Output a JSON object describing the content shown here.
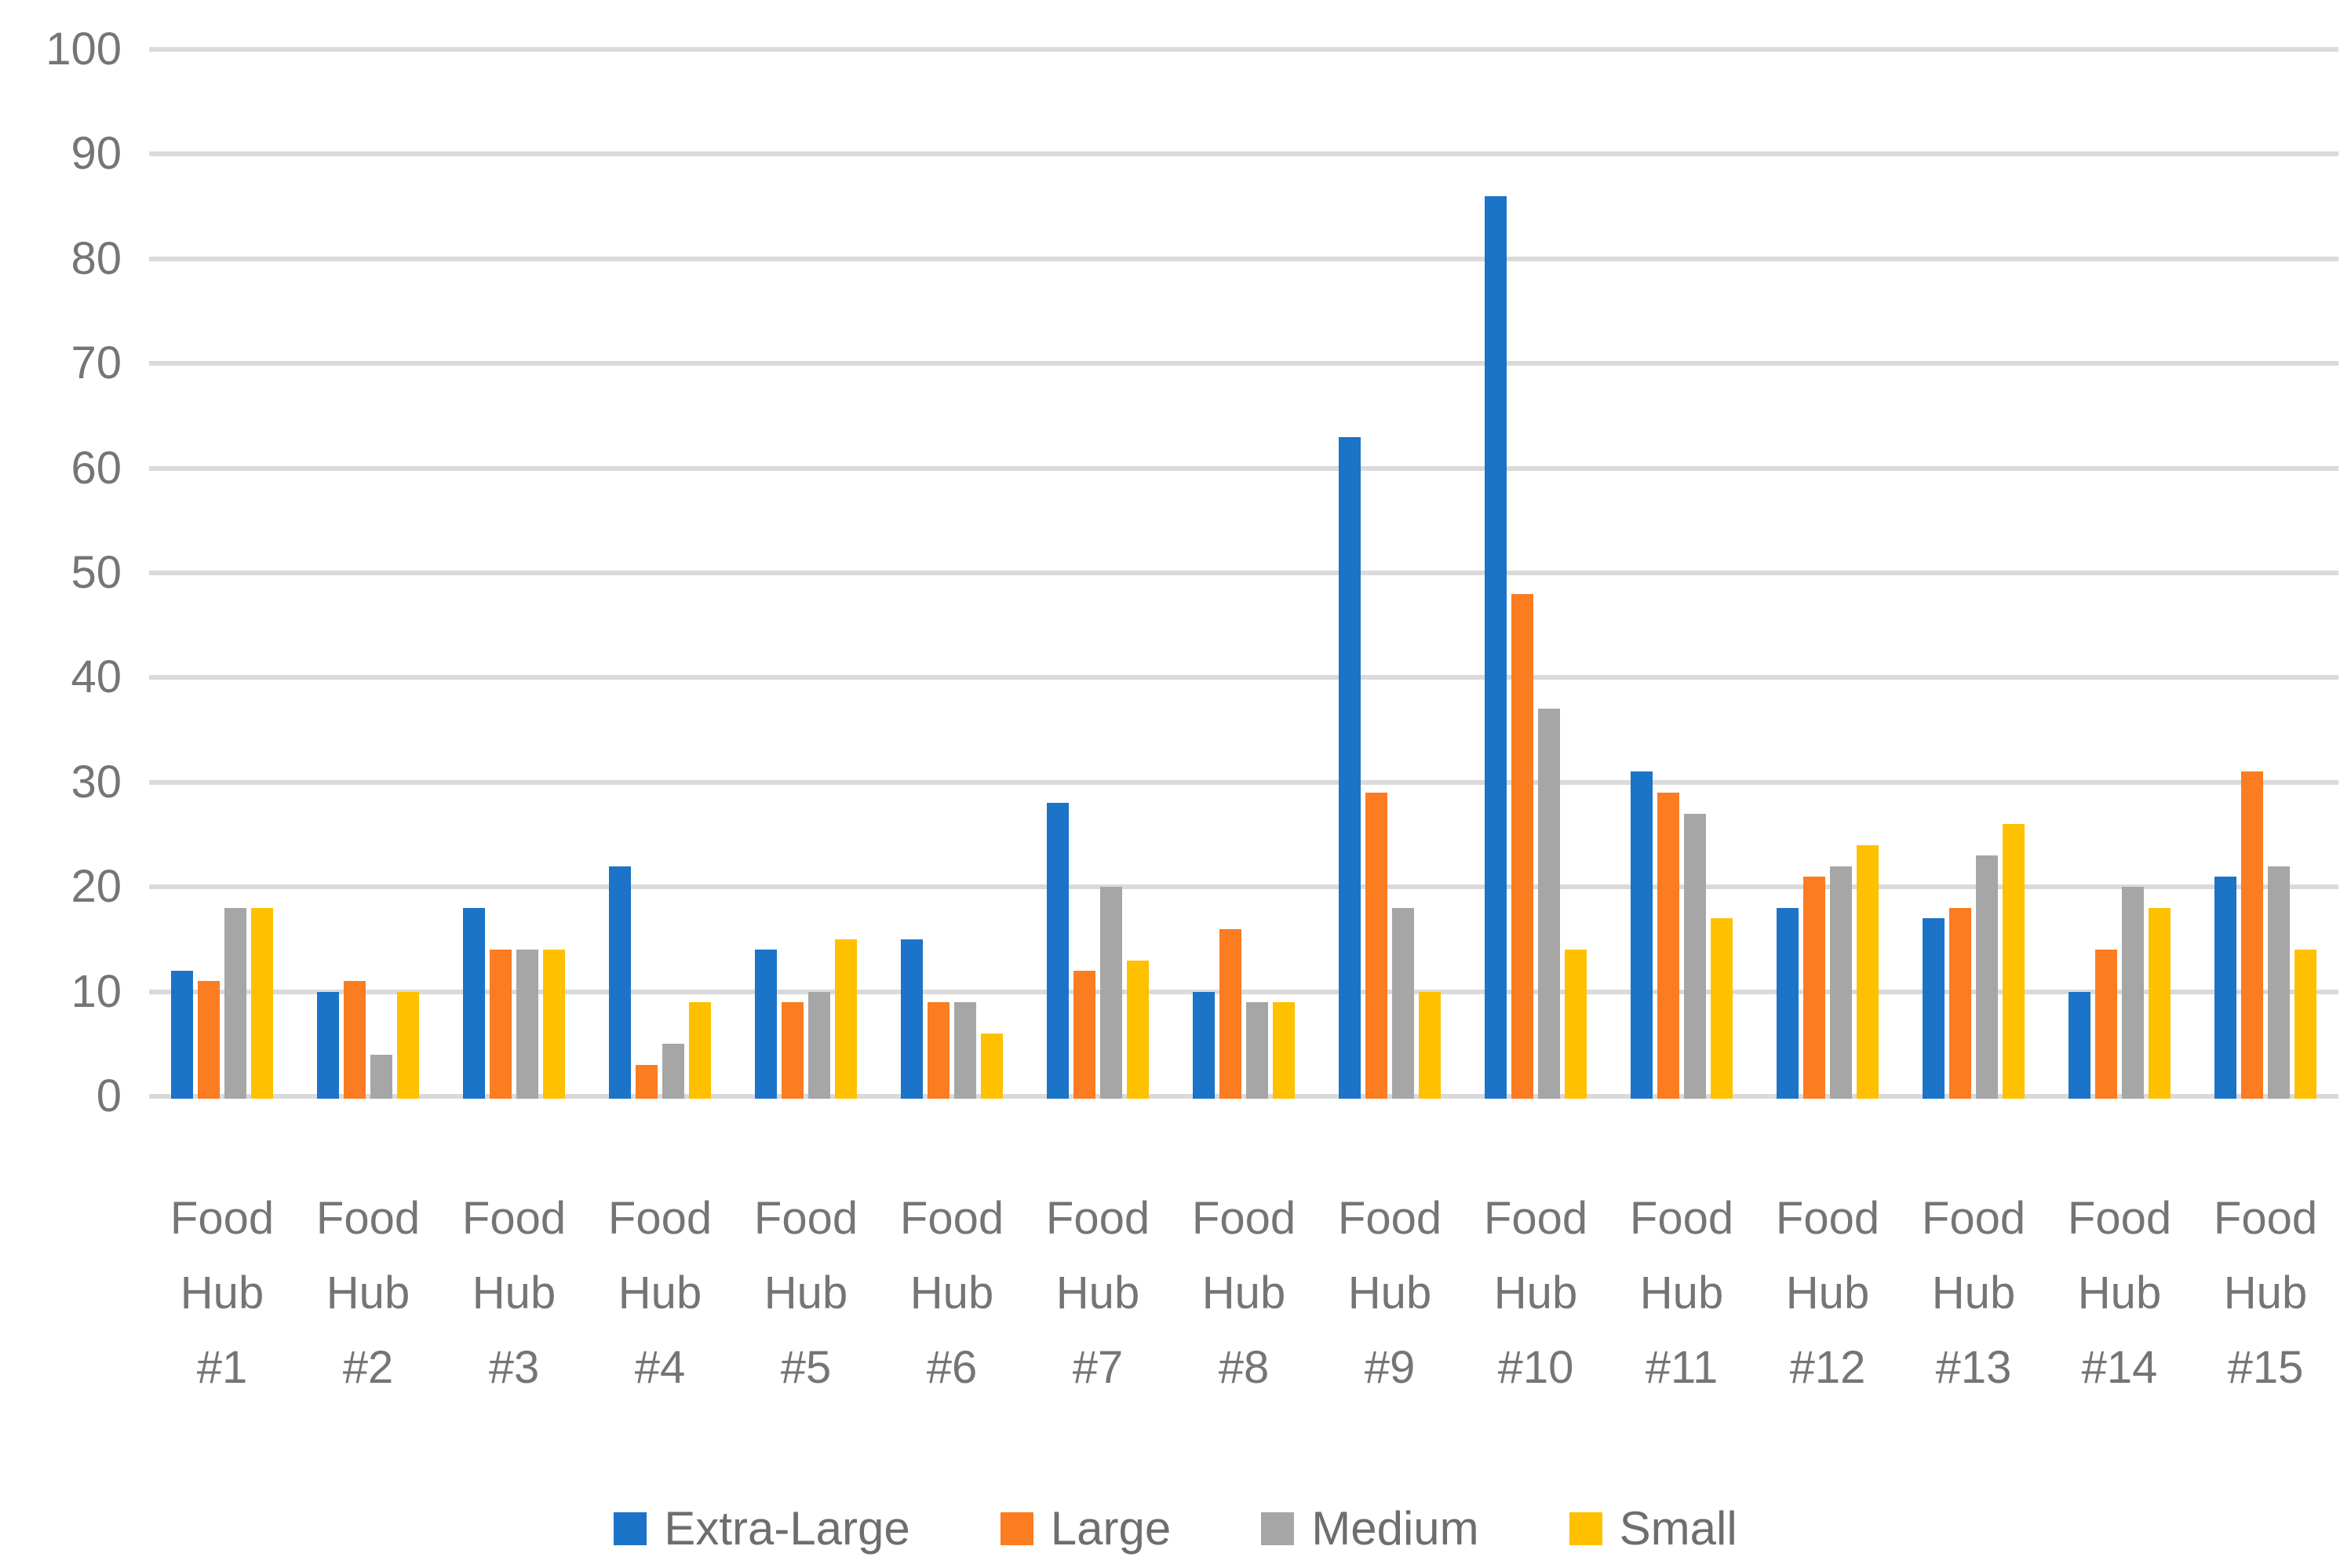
{
  "chart_data": {
    "type": "bar",
    "categories": [
      "Food Hub #1",
      "Food Hub #2",
      "Food Hub #3",
      "Food Hub #4",
      "Food Hub #5",
      "Food Hub #6",
      "Food Hub #7",
      "Food Hub #8",
      "Food Hub #9",
      "Food Hub #10",
      "Food Hub #11",
      "Food Hub #12",
      "Food Hub #13",
      "Food Hub #14",
      "Food Hub #15"
    ],
    "series": [
      {
        "name": "Extra-Large",
        "color": "#1B74C8",
        "values": [
          12,
          10,
          18,
          22,
          14,
          15,
          28,
          10,
          63,
          86,
          31,
          18,
          17,
          10,
          21
        ]
      },
      {
        "name": "Large",
        "color": "#FB7C21",
        "values": [
          11,
          11,
          14,
          3,
          9,
          9,
          12,
          16,
          29,
          48,
          29,
          21,
          18,
          14,
          31
        ]
      },
      {
        "name": "Medium",
        "color": "#A6A6A6",
        "values": [
          18,
          4,
          14,
          5,
          10,
          9,
          20,
          9,
          18,
          37,
          27,
          22,
          23,
          20,
          22
        ]
      },
      {
        "name": "Small",
        "color": "#FFC000",
        "values": [
          18,
          10,
          14,
          9,
          15,
          6,
          13,
          9,
          10,
          14,
          17,
          24,
          26,
          18,
          14
        ]
      }
    ],
    "ylim": [
      0,
      100
    ],
    "yticks": [
      100,
      90,
      80,
      70,
      60,
      50,
      40,
      30,
      20,
      10,
      0
    ],
    "grid": true,
    "legend_position": "bottom"
  },
  "styles": {
    "grid_color": "#DADADA",
    "axis_text_color": "#757575",
    "legend_text_color": "#6E6E6E",
    "background": "#FFFFFF"
  }
}
